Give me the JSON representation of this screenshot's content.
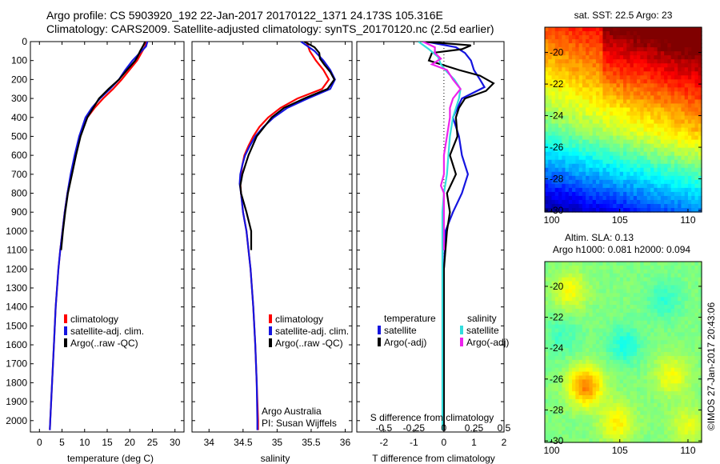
{
  "header": {
    "line1": "Argo profile: CS 5903920_192 22-Jan-2017 20170122_1371 24.173S 105.316E",
    "line2": "Climatology: CARS2009. Satellite-adjusted climatology: synTS_20170120.nc (2.5d earlier)"
  },
  "colors": {
    "climatology": "#ff0000",
    "satellite": "#1515e0",
    "argo": "#000000",
    "sal_sat": "#33dddd",
    "sal_argo": "#ee22ee"
  },
  "depth_ticks": [
    "0",
    "100",
    "200",
    "300",
    "400",
    "500",
    "600",
    "700",
    "800",
    "900",
    "1000",
    "1100",
    "1200",
    "1300",
    "1400",
    "1500",
    "1600",
    "1700",
    "1800",
    "1900",
    "2000"
  ],
  "chart_data": [
    {
      "type": "line",
      "id": "temperature",
      "xlabel": "temperature (deg C)",
      "ylabel": "depth",
      "xlim": [
        -2,
        32
      ],
      "ylim": [
        2060,
        0
      ],
      "xticks": [
        "0",
        "5",
        "10",
        "15",
        "20",
        "25",
        "30"
      ],
      "legend": [
        "climatology",
        "satellite-adj. clim.",
        "Argo(..raw -QC)"
      ],
      "series": [
        {
          "name": "climatology",
          "color": "#ff0000",
          "depth": [
            0,
            25,
            50,
            75,
            100,
            150,
            200,
            250,
            300,
            350,
            400,
            500,
            600,
            700,
            800,
            900,
            1000,
            1100,
            1200,
            1400,
            1600,
            1800,
            2000,
            2050
          ],
          "values": [
            23.6,
            23.4,
            22.8,
            22.2,
            21.6,
            19.9,
            18.2,
            16.3,
            14.1,
            12.2,
            10.6,
            9.0,
            8.0,
            7.0,
            6.2,
            5.6,
            5.1,
            4.6,
            4.2,
            3.6,
            3.2,
            2.8,
            2.4,
            2.3
          ]
        },
        {
          "name": "satellite-adj. clim.",
          "color": "#1515e0",
          "depth": [
            0,
            25,
            50,
            75,
            100,
            150,
            200,
            250,
            300,
            350,
            400,
            500,
            600,
            700,
            800,
            900,
            1000,
            1100,
            1200,
            1400,
            1600,
            1800,
            2000,
            2050
          ],
          "values": [
            23.9,
            23.6,
            22.6,
            21.6,
            20.6,
            19.0,
            17.6,
            15.6,
            13.4,
            11.6,
            10.2,
            8.8,
            7.8,
            6.9,
            6.2,
            5.6,
            5.1,
            4.6,
            4.2,
            3.6,
            3.2,
            2.8,
            2.4,
            2.3
          ]
        },
        {
          "name": "Argo(..raw -QC)",
          "color": "#000000",
          "depth": [
            0,
            20,
            50,
            80,
            100,
            150,
            200,
            250,
            300,
            350,
            400,
            500,
            600,
            700,
            800,
            900,
            1000,
            1100
          ],
          "values": [
            23.4,
            23.0,
            22.3,
            21.7,
            21.2,
            19.4,
            17.6,
            15.3,
            13.2,
            11.9,
            10.6,
            9.1,
            8.1,
            7.2,
            6.3,
            5.7,
            5.2,
            4.8
          ]
        }
      ]
    },
    {
      "type": "line",
      "id": "salinity",
      "xlabel": "salinity",
      "ylabel": "depth",
      "xlim": [
        33.75,
        36.1
      ],
      "ylim": [
        2060,
        0
      ],
      "xticks": [
        "34",
        "34.5",
        "35",
        "35.5",
        "36"
      ],
      "legend": [
        "climatology",
        "satellite-adj. clim.",
        "Argo(..raw -QC)"
      ],
      "annotation": [
        "Argo Australia",
        "PI: Susan Wijffels"
      ],
      "series": [
        {
          "name": "climatology",
          "color": "#ff0000",
          "depth": [
            0,
            50,
            100,
            150,
            200,
            250,
            300,
            350,
            400,
            450,
            500,
            550,
            600,
            650,
            700,
            750,
            800,
            900,
            1000,
            1200,
            1400,
            1600,
            1800,
            2000,
            2050
          ],
          "values": [
            35.43,
            35.48,
            35.57,
            35.68,
            35.76,
            35.66,
            35.3,
            35.05,
            34.87,
            34.74,
            34.65,
            34.58,
            34.52,
            34.49,
            34.47,
            34.46,
            34.47,
            34.5,
            34.55,
            34.61,
            34.65,
            34.68,
            34.7,
            34.72,
            34.72
          ]
        },
        {
          "name": "satellite-adj. clim.",
          "color": "#1515e0",
          "depth": [
            0,
            50,
            100,
            150,
            200,
            250,
            300,
            350,
            400,
            450,
            500,
            550,
            600,
            650,
            700,
            750,
            800,
            900,
            1000,
            1200,
            1400,
            1600,
            1800,
            2000,
            2050
          ],
          "values": [
            35.35,
            35.55,
            35.68,
            35.78,
            35.85,
            35.78,
            35.45,
            35.15,
            34.95,
            34.8,
            34.68,
            34.6,
            34.53,
            34.49,
            34.46,
            34.45,
            34.47,
            34.5,
            34.55,
            34.61,
            34.65,
            34.68,
            34.7,
            34.71,
            34.71
          ]
        },
        {
          "name": "Argo(..raw -QC)",
          "color": "#000000",
          "depth": [
            0,
            30,
            60,
            90,
            120,
            160,
            200,
            250,
            300,
            350,
            400,
            500,
            600,
            700,
            760,
            800,
            900,
            1000,
            1100
          ],
          "values": [
            35.4,
            35.55,
            35.62,
            35.63,
            35.69,
            35.78,
            35.84,
            35.74,
            35.4,
            35.1,
            34.92,
            34.7,
            34.58,
            34.49,
            34.46,
            34.47,
            34.55,
            34.62,
            34.62
          ]
        }
      ]
    },
    {
      "type": "line",
      "id": "difference",
      "xlabel": "T difference from climatology",
      "xlabel_top": "S difference from climatology",
      "ylabel": "depth",
      "xlim": [
        -2.9,
        2.0
      ],
      "ylim": [
        2060,
        0
      ],
      "xticks": [
        "-2",
        "-1",
        "0",
        "1",
        "2"
      ],
      "xticks_s": [
        "-0.5",
        "-0.25",
        "0",
        "0.25",
        "0.5"
      ],
      "legend_titles": [
        "temperature",
        "salinity"
      ],
      "legend": [
        "satellite",
        "Argo(-adj)",
        "satellite",
        "Argo(-adj)"
      ],
      "series": [
        {
          "name": "temperature satellite",
          "color": "#1515e0",
          "depth": [
            0,
            30,
            60,
            100,
            150,
            200,
            240,
            300,
            400,
            500,
            600,
            700,
            800,
            900,
            1000,
            1200,
            1400,
            1600,
            1800,
            2000,
            2050
          ],
          "values": [
            -0.6,
            0.4,
            0.7,
            0.9,
            1.0,
            1.2,
            1.35,
            0.6,
            0.3,
            0.5,
            0.6,
            0.8,
            0.6,
            0.3,
            0.05,
            0.0,
            0.0,
            0.0,
            0.0,
            0.0,
            0.0
          ]
        },
        {
          "name": "temperature Argo(-adj)",
          "color": "#000000",
          "depth": [
            0,
            20,
            40,
            60,
            100,
            150,
            180,
            220,
            260,
            300,
            350,
            400,
            500,
            600,
            700,
            800,
            900,
            1000,
            1100,
            1200,
            1400,
            1600,
            1800,
            2000,
            2050
          ],
          "values": [
            -0.7,
            0.9,
            0.6,
            -0.4,
            -0.5,
            0.5,
            1.2,
            1.65,
            1.4,
            0.7,
            0.5,
            0.4,
            0.45,
            0.2,
            0.4,
            0.1,
            0.2,
            0.1,
            0.05,
            0.0,
            0.0,
            0.0,
            0.0,
            0.0,
            0.0
          ]
        },
        {
          "name": "salinity satellite",
          "color": "#33dddd",
          "depth": [
            0,
            40,
            80,
            120,
            160,
            200,
            250,
            300,
            400,
            500,
            600,
            700,
            800,
            900,
            1000,
            1200,
            1400,
            1600,
            1800,
            2000,
            2050
          ],
          "values": [
            -0.85,
            -0.5,
            -0.2,
            -0.1,
            0.1,
            0.35,
            0.55,
            0.5,
            0.3,
            0.2,
            0.15,
            0.1,
            0.0,
            -0.05,
            -0.05,
            -0.05,
            -0.05,
            -0.05,
            -0.05,
            -0.05,
            -0.05
          ]
        },
        {
          "name": "salinity Argo(-adj)",
          "color": "#ee22ee",
          "depth": [
            0,
            30,
            60,
            90,
            120,
            150,
            200,
            250,
            300,
            350,
            400,
            500,
            600,
            700,
            760,
            800,
            900,
            1000,
            1100
          ],
          "values": [
            -0.7,
            -0.3,
            -0.3,
            -0.1,
            -0.4,
            0.1,
            0.3,
            0.55,
            0.3,
            0.2,
            0.2,
            0.1,
            0.0,
            0.0,
            -0.1,
            0.0,
            0.0,
            0.0,
            0.0
          ]
        }
      ]
    },
    {
      "type": "heatmap",
      "id": "sst_map",
      "title": "sat. SST: 22.5 Argo: 23",
      "xlim": [
        99.5,
        111
      ],
      "ylim": [
        -30.1,
        -18.4
      ],
      "xticks": [
        "100",
        "105",
        "110"
      ],
      "yticks": [
        "-20",
        "-22",
        "-24",
        "-26",
        "-28",
        "-30"
      ]
    },
    {
      "type": "heatmap",
      "id": "sla_map",
      "title": "Altim. SLA: 0.13",
      "subtitle": "Argo h1000: 0.081 h2000: 0.094",
      "xlim": [
        99.5,
        111
      ],
      "ylim": [
        -30.1,
        -18.4
      ],
      "xticks": [
        "100",
        "105",
        "110"
      ],
      "yticks": [
        "-20",
        "-22",
        "-24",
        "-26",
        "-28",
        "-30"
      ]
    }
  ],
  "footer": {
    "credit": "©IMOS 27-Jan-2017 20:43:06"
  }
}
